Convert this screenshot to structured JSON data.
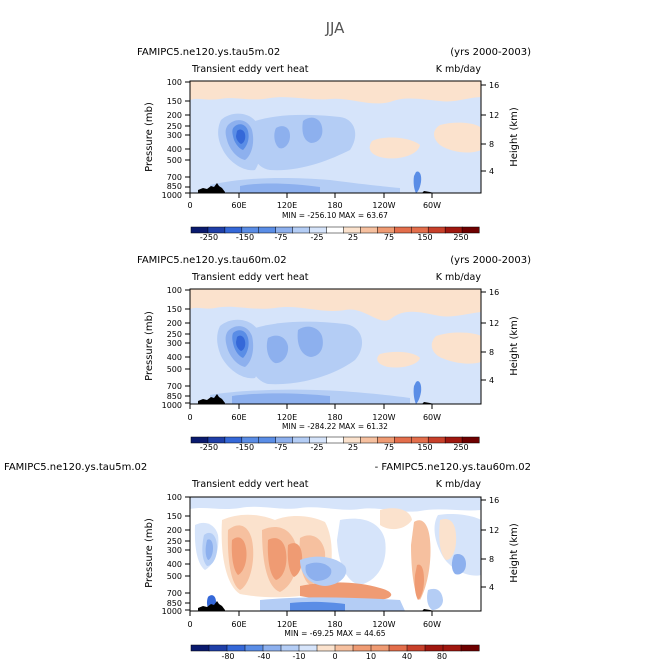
{
  "title": "JJA",
  "chart_data": [
    {
      "type": "heatmap",
      "case_label": "FAMIPC5.ne120.ys.tau5m.02",
      "years_label": "(yrs 2000-2003)",
      "variable": "Transient eddy vert heat",
      "units": "K mb/day",
      "ylabel": "Pressure  (mb)",
      "ylabel_right": "Height  (km)",
      "y_ticks": [
        "100",
        "150",
        "200",
        "250",
        "300",
        "400",
        "500",
        "700",
        "850",
        "1000"
      ],
      "y_ticks_right": [
        "16",
        "12",
        "8",
        "4"
      ],
      "x_ticks": [
        "0",
        "60E",
        "120E",
        "180",
        "120W",
        "60W"
      ],
      "stats": "MIN = -256.10   MAX =  63.67",
      "colorbar_ticks": [
        "-250",
        "-150",
        "-75",
        "-25",
        "25",
        "75",
        "150",
        "250"
      ],
      "levels": [
        -250,
        -200,
        -150,
        -100,
        -75,
        -50,
        -25,
        -10,
        10,
        25,
        50,
        75,
        100,
        150,
        200,
        250
      ]
    },
    {
      "type": "heatmap",
      "case_label": "FAMIPC5.ne120.ys.tau60m.02",
      "years_label": "(yrs 2000-2003)",
      "variable": "Transient eddy vert heat",
      "units": "K mb/day",
      "ylabel": "Pressure  (mb)",
      "ylabel_right": "Height  (km)",
      "y_ticks": [
        "100",
        "150",
        "200",
        "250",
        "300",
        "400",
        "500",
        "700",
        "850",
        "1000"
      ],
      "y_ticks_right": [
        "16",
        "12",
        "8",
        "4"
      ],
      "x_ticks": [
        "0",
        "60E",
        "120E",
        "180",
        "120W",
        "60W"
      ],
      "stats": "MIN = -284.22   MAX =  61.32",
      "colorbar_ticks": [
        "-250",
        "-150",
        "-75",
        "-25",
        "25",
        "75",
        "150",
        "250"
      ],
      "levels": [
        -250,
        -200,
        -150,
        -100,
        -75,
        -50,
        -25,
        -10,
        10,
        25,
        50,
        75,
        100,
        150,
        200,
        250
      ]
    },
    {
      "type": "heatmap",
      "case_label": "FAMIPC5.ne120.ys.tau5m.02",
      "years_label": "- FAMIPC5.ne120.ys.tau60m.02",
      "variable": "Transient eddy vert heat",
      "units": "K mb/day",
      "ylabel": "Pressure  (mb)",
      "ylabel_right": "Height  (km)",
      "y_ticks": [
        "100",
        "150",
        "200",
        "250",
        "300",
        "400",
        "500",
        "700",
        "850",
        "1000"
      ],
      "y_ticks_right": [
        "16",
        "12",
        "8",
        "4"
      ],
      "x_ticks": [
        "0",
        "60E",
        "120E",
        "180",
        "120W",
        "60W"
      ],
      "stats": "MIN = -69.25   MAX =  44.65",
      "colorbar_ticks": [
        "-80",
        "-40",
        "-10",
        "0",
        "10",
        "40",
        "80"
      ],
      "levels": [
        -100,
        -80,
        -60,
        -40,
        -20,
        -10,
        -5,
        0,
        5,
        10,
        20,
        40,
        60,
        80,
        100
      ]
    }
  ],
  "colors": {
    "negative_ramp": [
      "#0a1a6e",
      "#1f3fa8",
      "#3568d8",
      "#5a8de6",
      "#8db0ee",
      "#b4cdf5",
      "#d6e4fa"
    ],
    "neutral": "#ffffff",
    "positive_ramp": [
      "#fbe2cd",
      "#f6c09f",
      "#ef9b73",
      "#e36e4b",
      "#c8402a",
      "#a0170f",
      "#6e0000"
    ],
    "topography": "#000000"
  }
}
